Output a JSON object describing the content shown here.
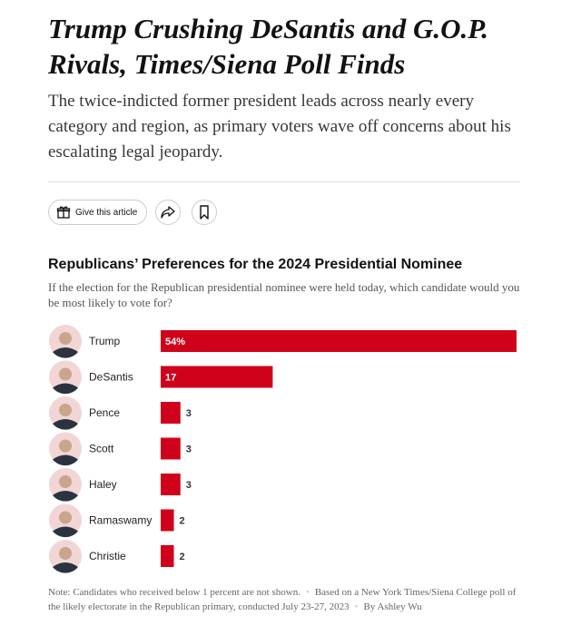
{
  "article": {
    "headline": "Trump Crushing DeSantis and G.O.P. Rivals, Times/Siena Poll Finds",
    "summary": "The twice-indicted former president leads across nearly every category and region, as primary voters wave off concerns about his escalating legal jeopardy.",
    "gift_button": "Give this article"
  },
  "chart_data": {
    "type": "bar",
    "orientation": "horizontal",
    "title": "Republicans’ Preferences for the 2024 Presidential Nominee",
    "subtitle": "If the election for the Republican presidential nominee were held today, which candidate would you be most likely to vote for?",
    "categories": [
      "Trump",
      "DeSantis",
      "Pence",
      "Scott",
      "Haley",
      "Ramaswamy",
      "Christie"
    ],
    "values": [
      54,
      17,
      3,
      3,
      3,
      2,
      2
    ],
    "value_labels": [
      "54%",
      "17",
      "3",
      "3",
      "3",
      "2",
      "2"
    ],
    "color": "#d0021b",
    "notes": [
      "Note: Candidates who received below 1 percent are not shown.",
      "Based on a New York Times/Siena College poll of the likely electorate in the Republican primary, conducted July 23-27, 2023",
      "By Ashley Wu"
    ]
  }
}
